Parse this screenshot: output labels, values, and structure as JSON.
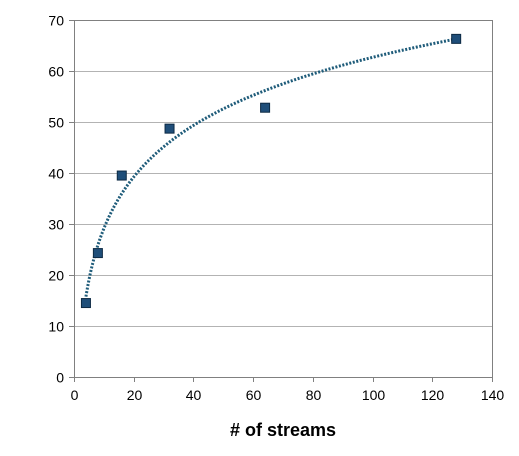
{
  "chart_data": {
    "type": "scatter",
    "title": "",
    "xlabel": "# of streams",
    "ylabel": "",
    "xlim": [
      0,
      140
    ],
    "ylim": [
      0,
      70
    ],
    "x_ticks": [
      0,
      20,
      40,
      60,
      80,
      100,
      120,
      140
    ],
    "y_ticks": [
      0,
      10,
      20,
      30,
      40,
      50,
      60,
      70
    ],
    "grid": true,
    "legend": "none",
    "series": [
      {
        "x": [
          4,
          8,
          16,
          32,
          64,
          128
        ],
        "y": [
          14.5,
          24.3,
          39.5,
          48.7,
          52.8,
          66.3
        ]
      }
    ],
    "trendline": {
      "type": "logarithmic",
      "x_from": 4,
      "x_to": 128
    },
    "colors": {
      "marker": "#1f4e79",
      "trendline": "#1f5c7a",
      "grid": "#b3b3b3",
      "axis": "#808080"
    }
  }
}
